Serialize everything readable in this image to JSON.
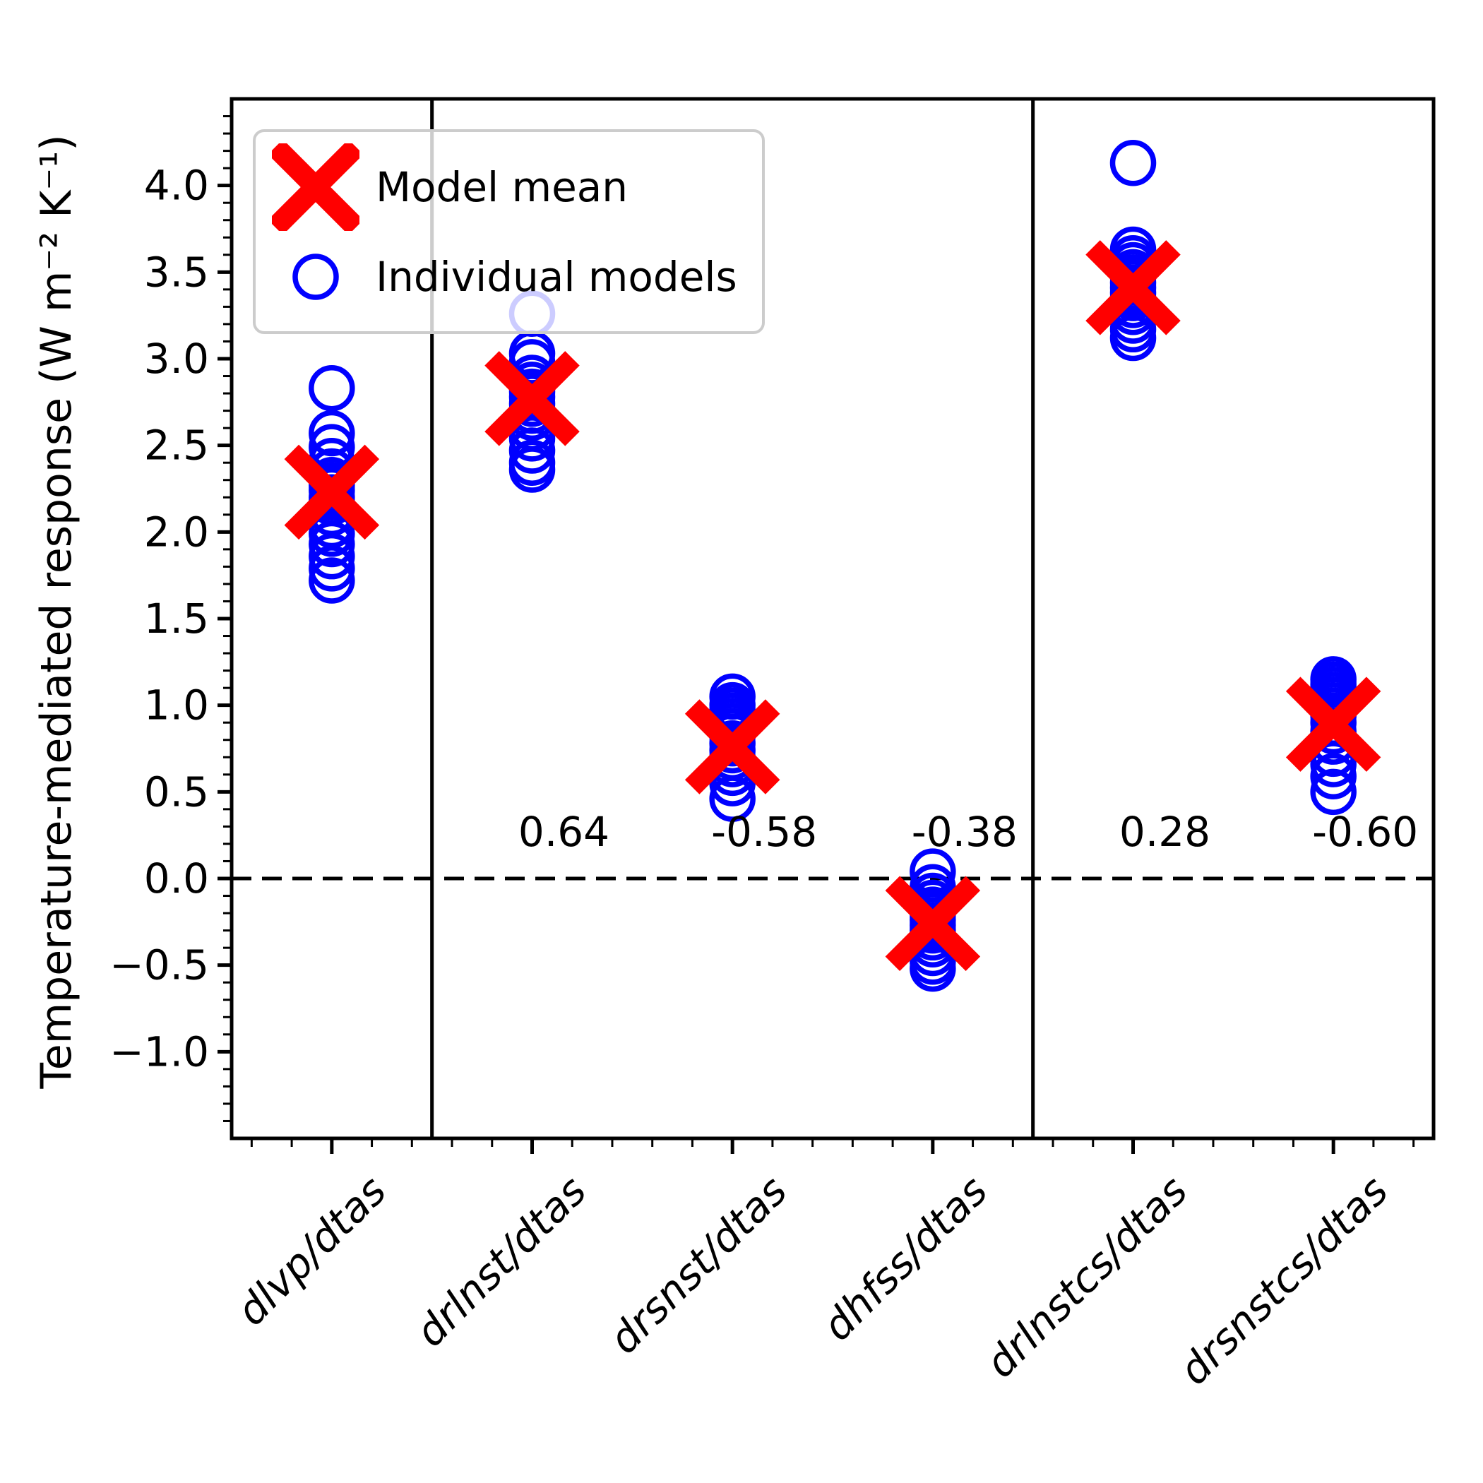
{
  "figure": {
    "background": "#ffffff",
    "ylabel": "Temperature-mediated response (W m⁻² K⁻¹)",
    "legend": {
      "items": [
        {
          "marker": "x-marker",
          "label": "Model mean",
          "color": "#ff0000"
        },
        {
          "marker": "circle-marker",
          "label": "Individual models",
          "color": "#0000ff"
        }
      ]
    }
  },
  "chart_data": {
    "type": "scatter",
    "title": "",
    "xlabel": "",
    "ylabel": "Temperature-mediated response (W m⁻² K⁻¹)",
    "ylim": [
      -1.5,
      4.5
    ],
    "yticks_labeled": [
      -1.0,
      -0.5,
      0.0,
      0.5,
      1.0,
      1.5,
      2.0,
      2.5,
      3.0,
      3.5,
      4.0
    ],
    "y_minor_step": 0.1,
    "x_minor_step": 0.2,
    "grid": false,
    "zero_line_y": 0.0,
    "group_separators_x": [
      0.5,
      3.5
    ],
    "legend_position": "upper left",
    "categories": [
      "dlvp/dtas",
      "drlnst/dtas",
      "drsnst/dtas",
      "dhfss/dtas",
      "drlnstcs/dtas",
      "drsnstcs/dtas"
    ],
    "series": [
      {
        "name": "Individual models",
        "marker": "circle",
        "color": "#0000ff",
        "values_by_category": [
          [
            2.83,
            2.57,
            2.49,
            2.41,
            2.35,
            2.3,
            2.27,
            2.24,
            2.2,
            2.17,
            2.11,
            2.04,
            1.99,
            1.93,
            1.86,
            1.79,
            1.72
          ],
          [
            3.26,
            3.03,
            2.98,
            2.89,
            2.85,
            2.81,
            2.78,
            2.74,
            2.7,
            2.66,
            2.6,
            2.54,
            2.47,
            2.4,
            2.36
          ],
          [
            1.05,
            1.0,
            0.97,
            0.94,
            0.91,
            0.88,
            0.85,
            0.82,
            0.78,
            0.74,
            0.7,
            0.66,
            0.61,
            0.55,
            0.46
          ],
          [
            0.04,
            -0.05,
            -0.1,
            -0.14,
            -0.18,
            -0.21,
            -0.24,
            -0.27,
            -0.3,
            -0.34,
            -0.38,
            -0.43,
            -0.48,
            -0.52
          ],
          [
            4.13,
            3.63,
            3.58,
            3.54,
            3.5,
            3.47,
            3.44,
            3.41,
            3.38,
            3.35,
            3.31,
            3.27,
            3.22,
            3.17,
            3.12
          ],
          [
            1.15,
            1.12,
            1.09,
            1.06,
            1.03,
            1.0,
            0.97,
            0.94,
            0.9,
            0.85,
            0.79,
            0.72,
            0.66,
            0.59,
            0.5
          ]
        ]
      },
      {
        "name": "Model mean",
        "marker": "X",
        "color": "#ff0000",
        "values": [
          2.23,
          2.77,
          0.76,
          -0.26,
          3.41,
          0.89
        ]
      }
    ],
    "annotations": [
      {
        "category_index": 1,
        "text": "0.64"
      },
      {
        "category_index": 2,
        "text": "-0.58"
      },
      {
        "category_index": 3,
        "text": "-0.38"
      },
      {
        "category_index": 4,
        "text": "0.28"
      },
      {
        "category_index": 5,
        "text": "-0.60"
      }
    ],
    "annotation_y": 0.27
  }
}
